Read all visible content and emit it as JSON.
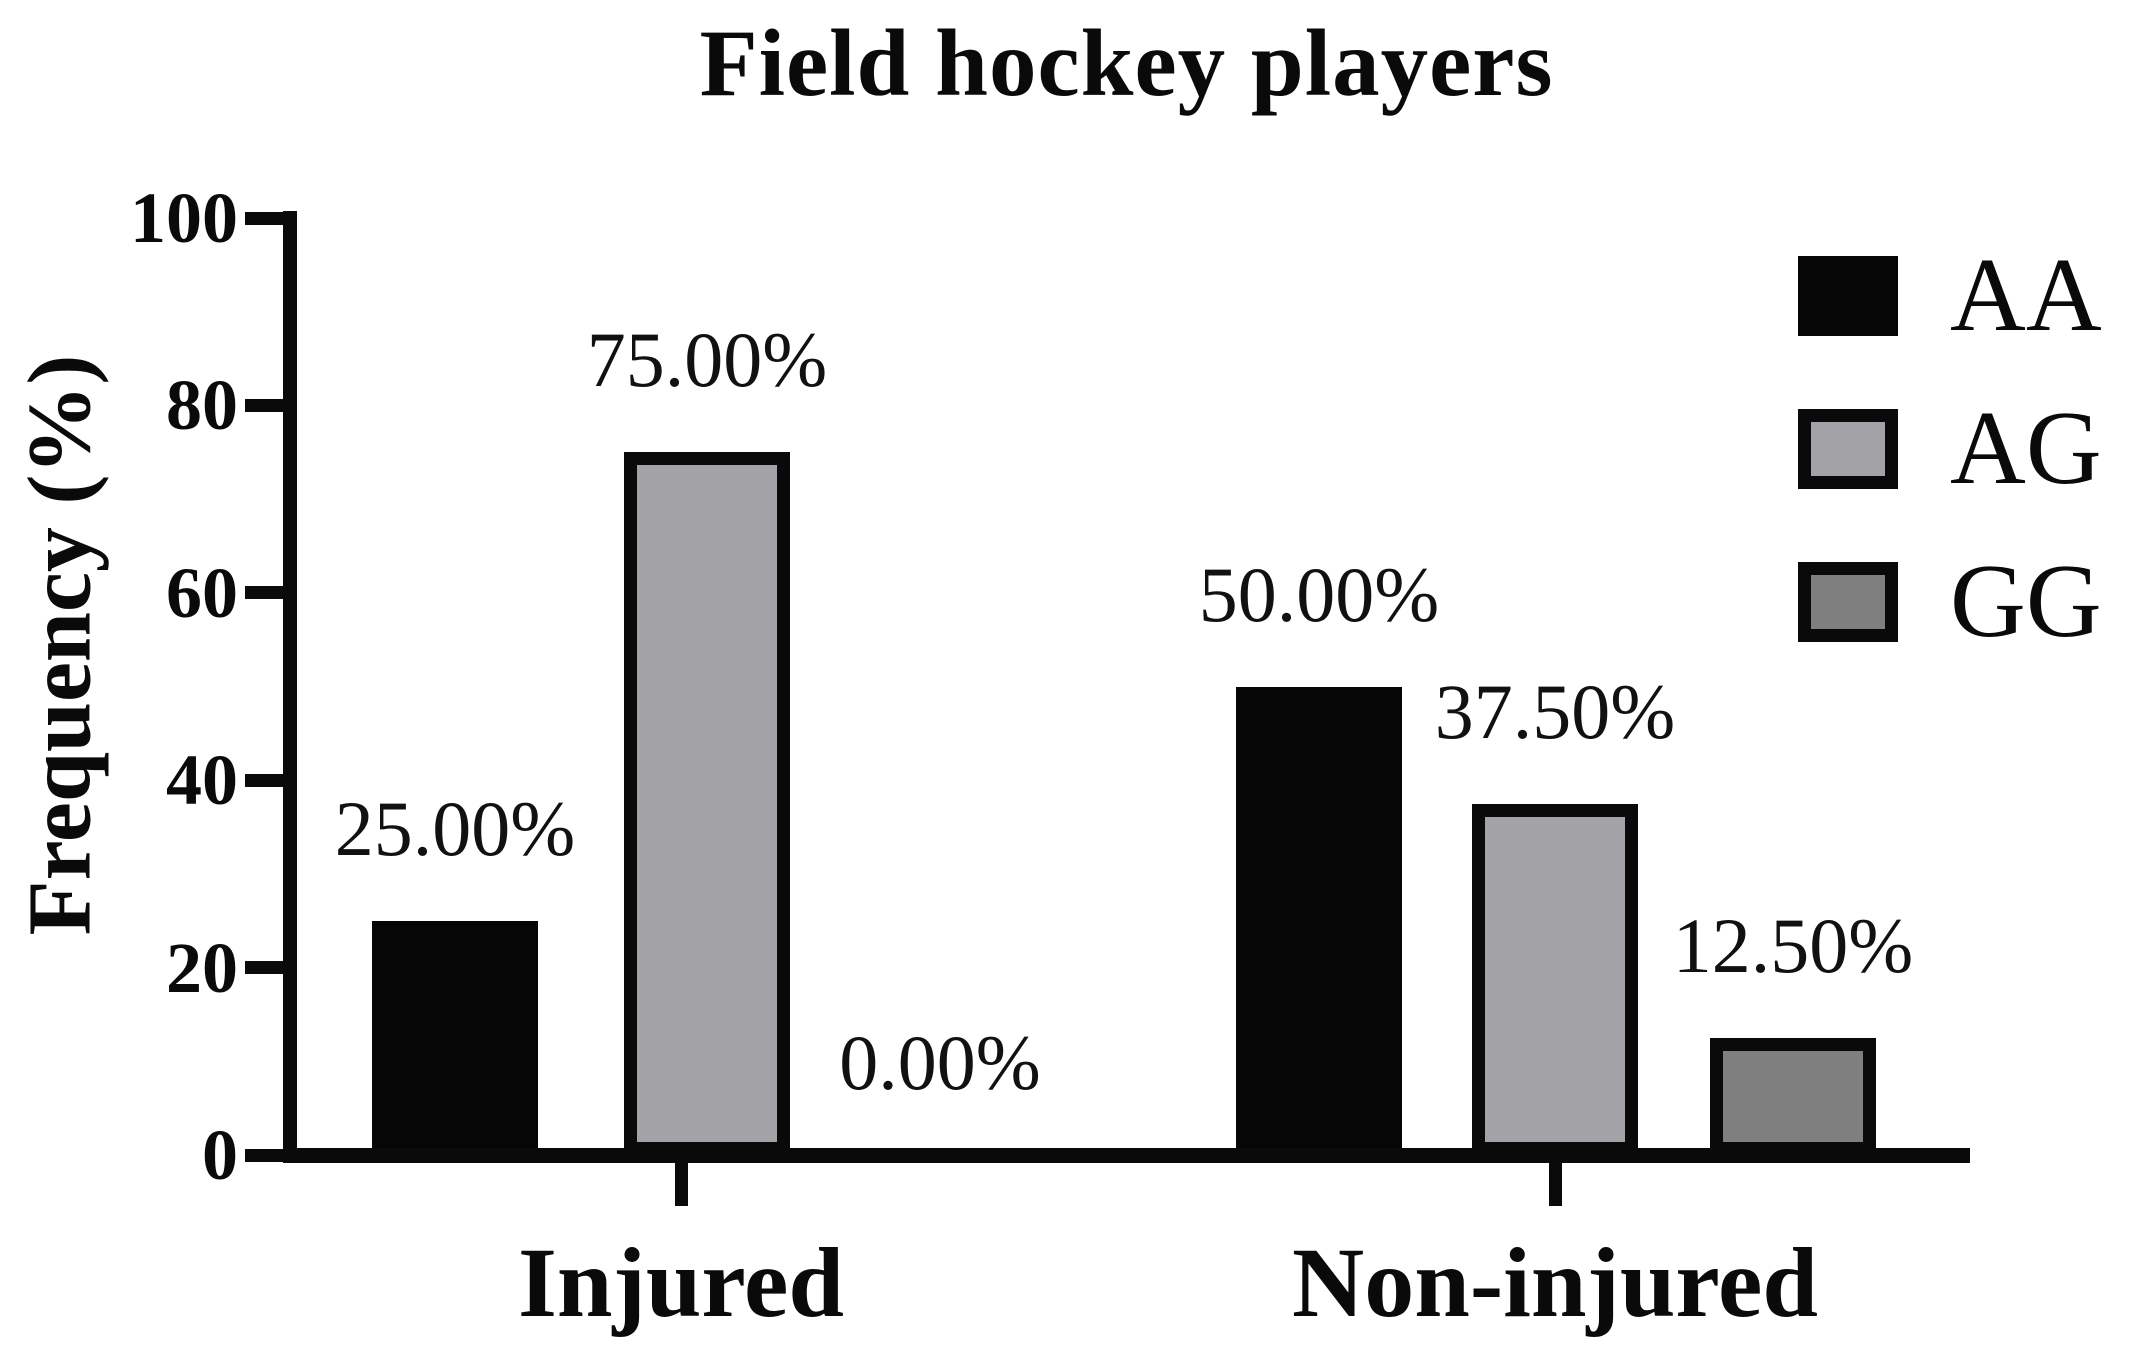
{
  "chart_data": {
    "type": "bar",
    "title": "Field hockey players",
    "xlabel": "",
    "ylabel": "Frequency (%)",
    "categories": [
      "Injured",
      "Non-injured"
    ],
    "series": [
      {
        "name": "AA",
        "fill": "#060606",
        "border": "#060606",
        "values": [
          25,
          50
        ],
        "labels": [
          "25.00%",
          "50.00%"
        ]
      },
      {
        "name": "AG",
        "fill": "#a3a3a7",
        "border": "#0a0a0a",
        "values": [
          75,
          37.5
        ],
        "labels": [
          "75.00%",
          "37.50%"
        ]
      },
      {
        "name": "GG",
        "fill": "#7f7f7f",
        "border": "#0a0a0a",
        "values": [
          0,
          12.5
        ],
        "labels": [
          "0.00%",
          "12.50%"
        ]
      }
    ],
    "yticks": [
      0,
      20,
      40,
      60,
      80,
      100
    ],
    "ylim": [
      0,
      100
    ],
    "grid": false,
    "legend_position": "top-right",
    "value_labels_shown": true,
    "axis_color": "#0a0a0a"
  }
}
